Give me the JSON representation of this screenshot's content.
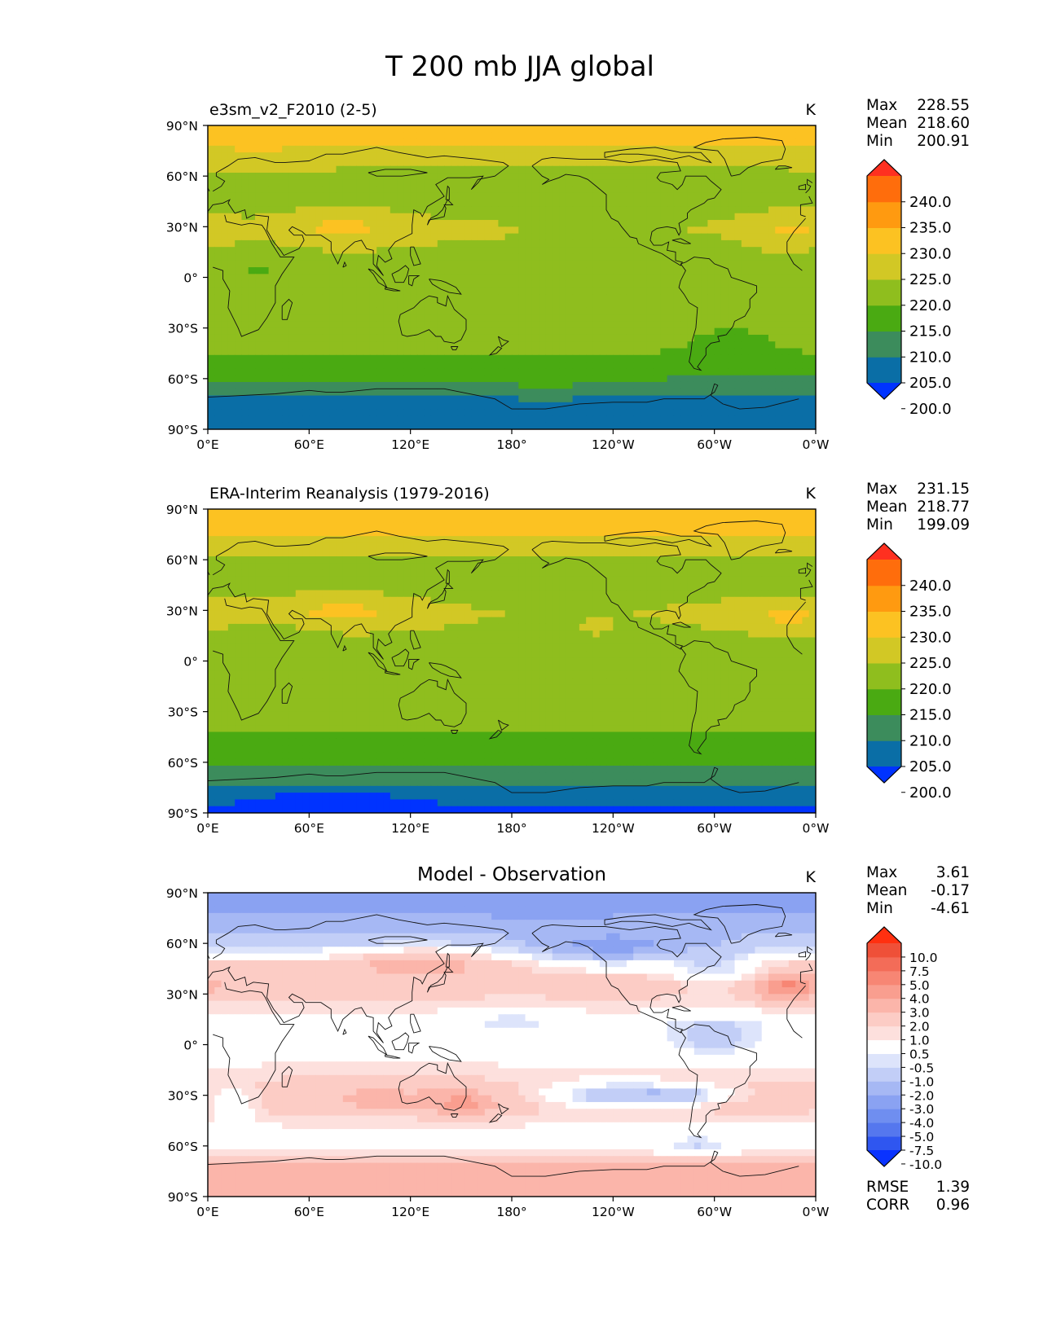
{
  "title": "T 200 mb JJA global",
  "axes": {
    "x_ticks": [
      "0°E",
      "60°E",
      "120°E",
      "180°",
      "120°W",
      "60°W",
      "0°W"
    ],
    "y_ticks": [
      "90°N",
      "60°N",
      "30°N",
      "0°",
      "30°S",
      "60°S",
      "90°S"
    ]
  },
  "colors": {
    "temp_levels": [
      "#0033ff",
      "#0a6ea6",
      "#3c8c5c",
      "#4aaa12",
      "#8fbe1e",
      "#d2c825",
      "#fcc222",
      "#ff9a10",
      "#ff6d0c",
      "#ff3020"
    ],
    "diff_levels": [
      "#0a33ff",
      "#2f56f0",
      "#5577ee",
      "#6f8ef0",
      "#8aa2f2",
      "#a6b8f4",
      "#c2cef7",
      "#dde4fb",
      "#ffffff",
      "#fde0dd",
      "#fcccc5",
      "#fbb5aa",
      "#f99e8f",
      "#f78674",
      "#f36c58",
      "#ef5038",
      "#ff3010"
    ]
  },
  "stats": {
    "labels": {
      "max": "Max",
      "mean": "Mean",
      "min": "Min",
      "rmse": "RMSE",
      "corr": "CORR"
    }
  },
  "chart_data": [
    {
      "type": "heatmap",
      "title": "e3sm_v2_F2010 (2-5)",
      "units": "K",
      "stats": {
        "max": "228.55",
        "mean": "218.60",
        "min": "200.91"
      },
      "colorbar": {
        "ticks": [
          "240.0",
          "235.0",
          "230.0",
          "225.0",
          "220.0",
          "215.0",
          "210.0",
          "205.0",
          "200.0"
        ],
        "extend": "both"
      },
      "xlim": [
        0,
        360
      ],
      "ylim": [
        -90,
        90
      ],
      "zonal_profile": {
        "lat": [
          90,
          82,
          72,
          58,
          42,
          28,
          12,
          0,
          -12,
          -28,
          -38,
          -48,
          -58,
          -64,
          -72,
          -90
        ],
        "value": [
          226,
          226,
          222,
          218,
          219,
          221,
          219,
          218,
          219,
          219,
          217,
          214,
          211,
          208,
          204,
          204
        ]
      }
    },
    {
      "type": "heatmap",
      "title": "ERA-Interim Reanalysis (1979-2016)",
      "units": "K",
      "stats": {
        "max": "231.15",
        "mean": "218.77",
        "min": "199.09"
      },
      "colorbar": {
        "ticks": [
          "240.0",
          "235.0",
          "230.0",
          "225.0",
          "220.0",
          "215.0",
          "210.0",
          "205.0",
          "200.0"
        ],
        "extend": "both"
      },
      "xlim": [
        0,
        360
      ],
      "ylim": [
        -90,
        90
      ],
      "zonal_profile": {
        "lat": [
          90,
          84,
          72,
          58,
          42,
          28,
          12,
          0,
          -12,
          -28,
          -40,
          -50,
          -58,
          -64,
          -72,
          -80,
          -90
        ],
        "value": [
          231,
          228,
          225,
          219,
          219,
          222,
          219,
          218,
          219,
          219,
          216,
          213,
          211,
          209,
          206,
          203,
          199
        ]
      }
    },
    {
      "type": "heatmap",
      "title": "Model - Observation",
      "units": "K",
      "stats": {
        "max": "3.61",
        "mean": "-0.17",
        "min": "-4.61",
        "rmse": "1.39",
        "corr": "0.96"
      },
      "colorbar": {
        "ticks": [
          "10.0",
          "7.5",
          "5.0",
          "4.0",
          "3.0",
          "2.0",
          "1.0",
          "0.5",
          "-0.5",
          "-1.0",
          "-2.0",
          "-3.0",
          "-4.0",
          "-5.0",
          "-7.5",
          "-10.0"
        ],
        "extend": "both"
      },
      "xlim": [
        0,
        360
      ],
      "ylim": [
        -90,
        90
      ],
      "zonal_profile": {
        "lat": [
          90,
          80,
          70,
          60,
          48,
          36,
          24,
          12,
          0,
          -12,
          -24,
          -36,
          -48,
          -58,
          -66,
          -72,
          -80,
          -90
        ],
        "value": [
          -3.5,
          -3,
          -2.5,
          -1.5,
          1,
          1.5,
          0.8,
          0,
          0.2,
          0.5,
          1.2,
          1.5,
          0.5,
          0,
          0.8,
          2.2,
          2.5,
          2.2
        ]
      }
    }
  ]
}
